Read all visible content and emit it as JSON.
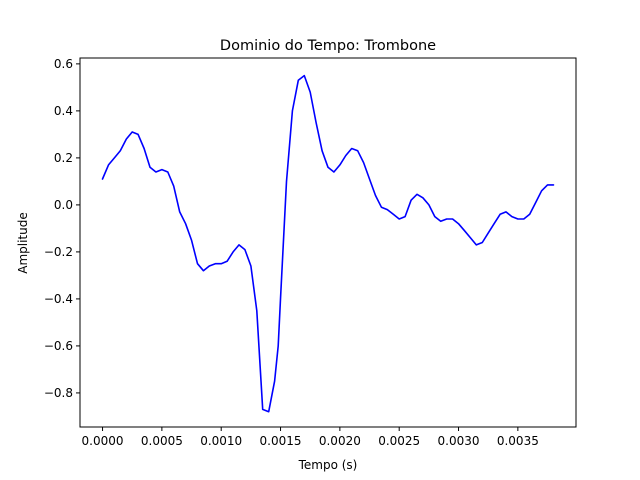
{
  "chart_data": {
    "type": "line",
    "title": "Dominio do Tempo: Trombone",
    "xlabel": "Tempo (s)",
    "ylabel": "Amplitude",
    "xlim": [
      -0.00019,
      0.00399
    ],
    "ylim": [
      -0.945,
      0.625
    ],
    "grid": false,
    "legend": "none",
    "x_ticks": [
      {
        "value": 0.0,
        "label": "0.0000"
      },
      {
        "value": 0.0005,
        "label": "0.0005"
      },
      {
        "value": 0.001,
        "label": "0.0010"
      },
      {
        "value": 0.0015,
        "label": "0.0015"
      },
      {
        "value": 0.002,
        "label": "0.0020"
      },
      {
        "value": 0.0025,
        "label": "0.0025"
      },
      {
        "value": 0.003,
        "label": "0.0030"
      },
      {
        "value": 0.0035,
        "label": "0.0035"
      }
    ],
    "y_ticks": [
      {
        "value": 0.6,
        "label": "0.6"
      },
      {
        "value": 0.4,
        "label": "0.4"
      },
      {
        "value": 0.2,
        "label": "0.2"
      },
      {
        "value": 0.0,
        "label": "0.0"
      },
      {
        "value": -0.2,
        "label": "−0.2"
      },
      {
        "value": -0.4,
        "label": "−0.4"
      },
      {
        "value": -0.6,
        "label": "−0.6"
      },
      {
        "value": -0.8,
        "label": "−0.8"
      }
    ],
    "series": [
      {
        "color": "#0000ff",
        "x": [
          0.0,
          5e-05,
          0.0001,
          0.00015,
          0.0002,
          0.00025,
          0.0003,
          0.00035,
          0.0004,
          0.00045,
          0.0005,
          0.00055,
          0.0006,
          0.00065,
          0.0007,
          0.00075,
          0.0008,
          0.00085,
          0.0009,
          0.00095,
          0.001,
          0.00105,
          0.0011,
          0.00115,
          0.0012,
          0.00125,
          0.0013,
          0.00135,
          0.0014,
          0.00145,
          0.00148,
          0.0015,
          0.00155,
          0.0016,
          0.00165,
          0.0017,
          0.00175,
          0.0018,
          0.00185,
          0.0019,
          0.00195,
          0.002,
          0.00205,
          0.0021,
          0.00215,
          0.0022,
          0.00225,
          0.0023,
          0.00235,
          0.0024,
          0.00245,
          0.0025,
          0.00255,
          0.0026,
          0.00265,
          0.0027,
          0.00275,
          0.0028,
          0.00285,
          0.0029,
          0.00295,
          0.003,
          0.00305,
          0.0031,
          0.00315,
          0.0032,
          0.00325,
          0.0033,
          0.00335,
          0.0034,
          0.00345,
          0.0035,
          0.00355,
          0.0036,
          0.00365,
          0.0037,
          0.00375,
          0.0038
        ],
        "y": [
          0.11,
          0.17,
          0.2,
          0.23,
          0.28,
          0.31,
          0.3,
          0.24,
          0.16,
          0.14,
          0.15,
          0.14,
          0.08,
          -0.03,
          -0.08,
          -0.15,
          -0.25,
          -0.28,
          -0.26,
          -0.25,
          -0.25,
          -0.24,
          -0.2,
          -0.17,
          -0.19,
          -0.26,
          -0.45,
          -0.87,
          -0.88,
          -0.75,
          -0.6,
          -0.4,
          0.1,
          0.4,
          0.53,
          0.55,
          0.48,
          0.35,
          0.23,
          0.16,
          0.14,
          0.17,
          0.21,
          0.24,
          0.23,
          0.18,
          0.11,
          0.04,
          -0.01,
          -0.02,
          -0.04,
          -0.06,
          -0.05,
          0.02,
          0.045,
          0.03,
          0.0,
          -0.05,
          -0.07,
          -0.06,
          -0.06,
          -0.08,
          -0.11,
          -0.14,
          -0.17,
          -0.16,
          -0.12,
          -0.08,
          -0.04,
          -0.03,
          -0.05,
          -0.06,
          -0.06,
          -0.04,
          0.01,
          0.06,
          0.085,
          0.085
        ]
      }
    ]
  }
}
